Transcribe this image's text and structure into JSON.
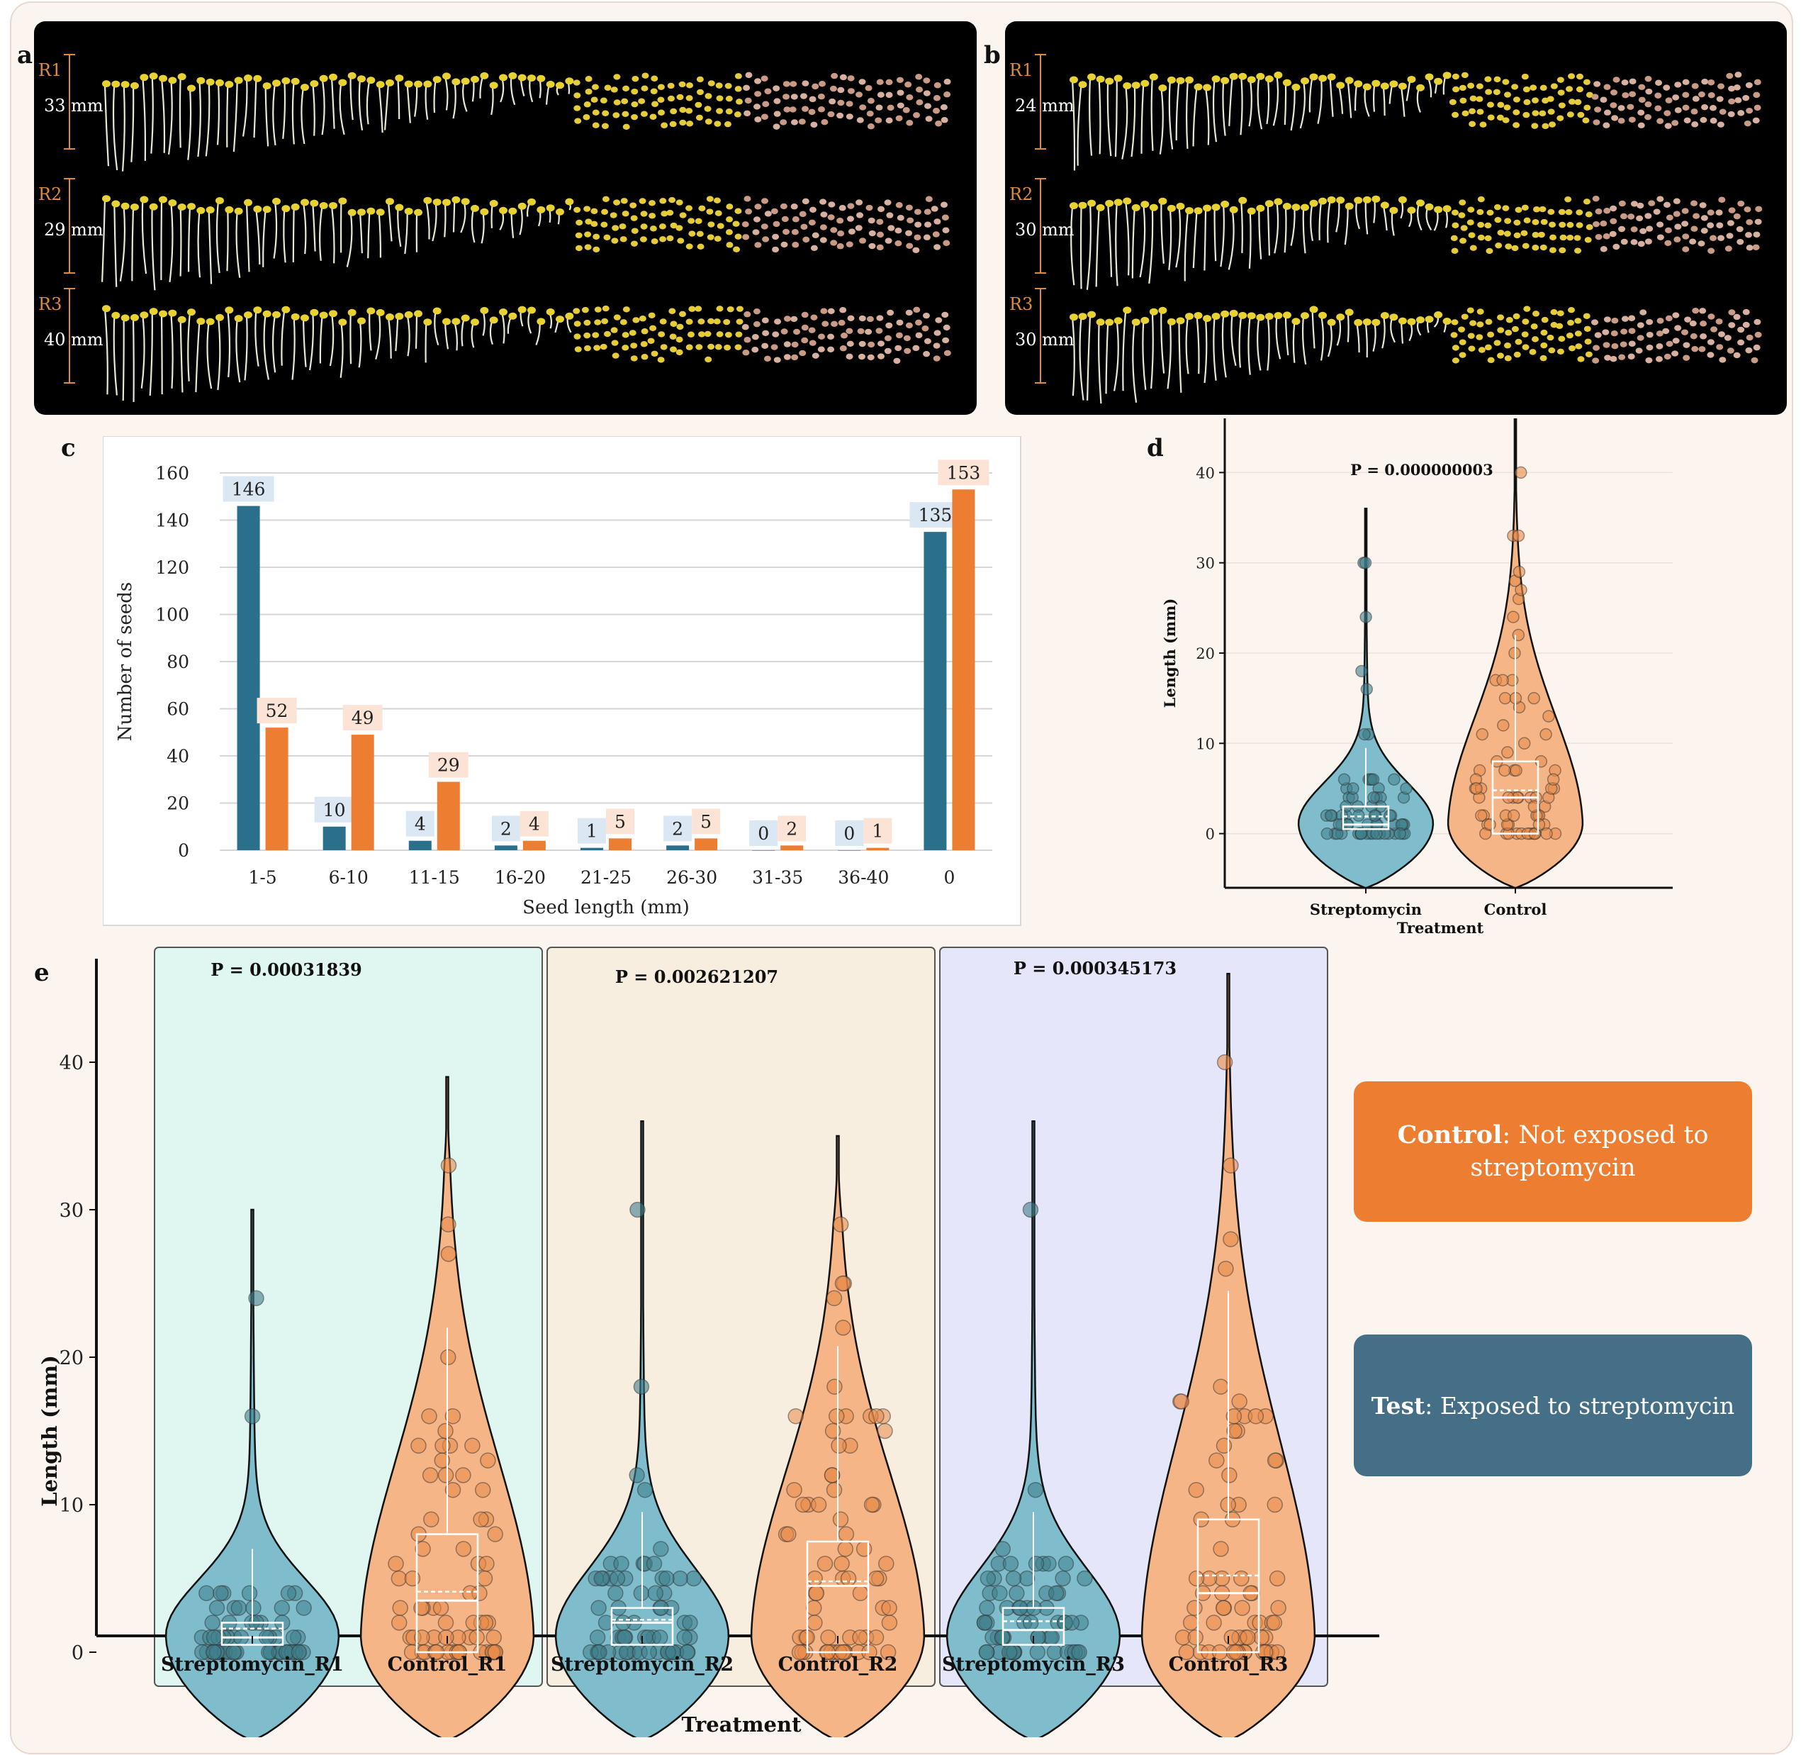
{
  "panel_labels": [
    "a",
    "b",
    "c",
    "d",
    "e"
  ],
  "photo_a": {
    "rows": [
      {
        "label": "R1",
        "measure": "33 mm"
      },
      {
        "label": "R2",
        "measure": "29 mm"
      },
      {
        "label": "R3",
        "measure": "40 mm"
      }
    ]
  },
  "photo_b": {
    "rows": [
      {
        "label": "R1",
        "measure": "24 mm"
      },
      {
        "label": "R2",
        "measure": "30 mm"
      },
      {
        "label": "R3",
        "measure": "30 mm"
      }
    ]
  },
  "legend_boxes": {
    "control": {
      "term": "Control",
      "rest": ": Not exposed to streptomycin",
      "color": "#ed7d31"
    },
    "test": {
      "term": "Test",
      "rest": ": Exposed to streptomycin",
      "color": "#456f87"
    }
  },
  "chart_data": [
    {
      "panel": "c",
      "type": "bar",
      "xlabel": "Seed length (mm)",
      "ylabel": "Number of seeds",
      "categories": [
        "1-5",
        "6-10",
        "11-15",
        "16-20",
        "21-25",
        "26-30",
        "31-35",
        "36-40",
        "0"
      ],
      "series": [
        {
          "color": "#2a6f8c",
          "values": [
            146,
            10,
            4,
            2,
            1,
            2,
            0,
            0,
            135
          ]
        },
        {
          "color": "#ed7d31",
          "values": [
            52,
            49,
            29,
            4,
            5,
            5,
            2,
            1,
            153
          ]
        }
      ],
      "ylim": [
        0,
        160
      ],
      "yticks": [
        0,
        20,
        40,
        60,
        80,
        100,
        120,
        140,
        160
      ],
      "grid": true
    },
    {
      "panel": "d",
      "type": "violin",
      "xlabel": "Treatment",
      "ylabel": "Length (mm)",
      "categories": [
        "Streptomycin",
        "Control"
      ],
      "colors": [
        "#7fbdcc",
        "#f6b586"
      ],
      "annotation": "P = 0.000000003",
      "ylim": [
        -6,
        46
      ],
      "yticks": [
        0,
        10,
        20,
        30,
        40
      ],
      "groups": [
        {
          "min": 0,
          "q1": 0.5,
          "median": 1,
          "mean": 1.9,
          "q3": 3,
          "max": 30
        },
        {
          "min": 0,
          "q1": 0,
          "median": 4,
          "mean": 4.8,
          "q3": 8,
          "max": 40
        }
      ]
    },
    {
      "panel": "e",
      "type": "violin",
      "xlabel": "Treatment",
      "ylabel": "Length (mm)",
      "categories": [
        "Streptomycin_R1",
        "Control_R1",
        "Streptomycin_R2",
        "Control_R2",
        "Streptomycin_R3",
        "Control_R3"
      ],
      "colors": [
        "#7fbdcc",
        "#f6b586",
        "#7fbdcc",
        "#f6b586",
        "#7fbdcc",
        "#f6b586"
      ],
      "facet_colors": [
        "#e0f6f0",
        "#f7eedf",
        "#e6e6fa"
      ],
      "annotations": [
        "P =  0.00031839",
        "P =  0.002621207",
        "P =  0.000345173"
      ],
      "ylim": [
        -9,
        47
      ],
      "yticks": [
        0,
        10,
        20,
        30,
        40
      ],
      "groups": [
        {
          "min": 0,
          "q1": 0.5,
          "median": 1,
          "mean": 1.6,
          "q3": 2,
          "max": 24
        },
        {
          "min": 0,
          "q1": 0,
          "median": 3.5,
          "mean": 4.1,
          "q3": 8,
          "max": 33
        },
        {
          "min": 0,
          "q1": 0.5,
          "median": 2,
          "mean": 2.2,
          "q3": 3,
          "max": 30
        },
        {
          "min": 0,
          "q1": 0,
          "median": 4.5,
          "mean": 4.8,
          "q3": 7.5,
          "max": 29
        },
        {
          "min": 0,
          "q1": 0.5,
          "median": 1.5,
          "mean": 2.1,
          "q3": 3,
          "max": 30
        },
        {
          "min": 0,
          "q1": 0,
          "median": 4,
          "mean": 5.2,
          "q3": 9,
          "max": 40
        }
      ]
    }
  ]
}
